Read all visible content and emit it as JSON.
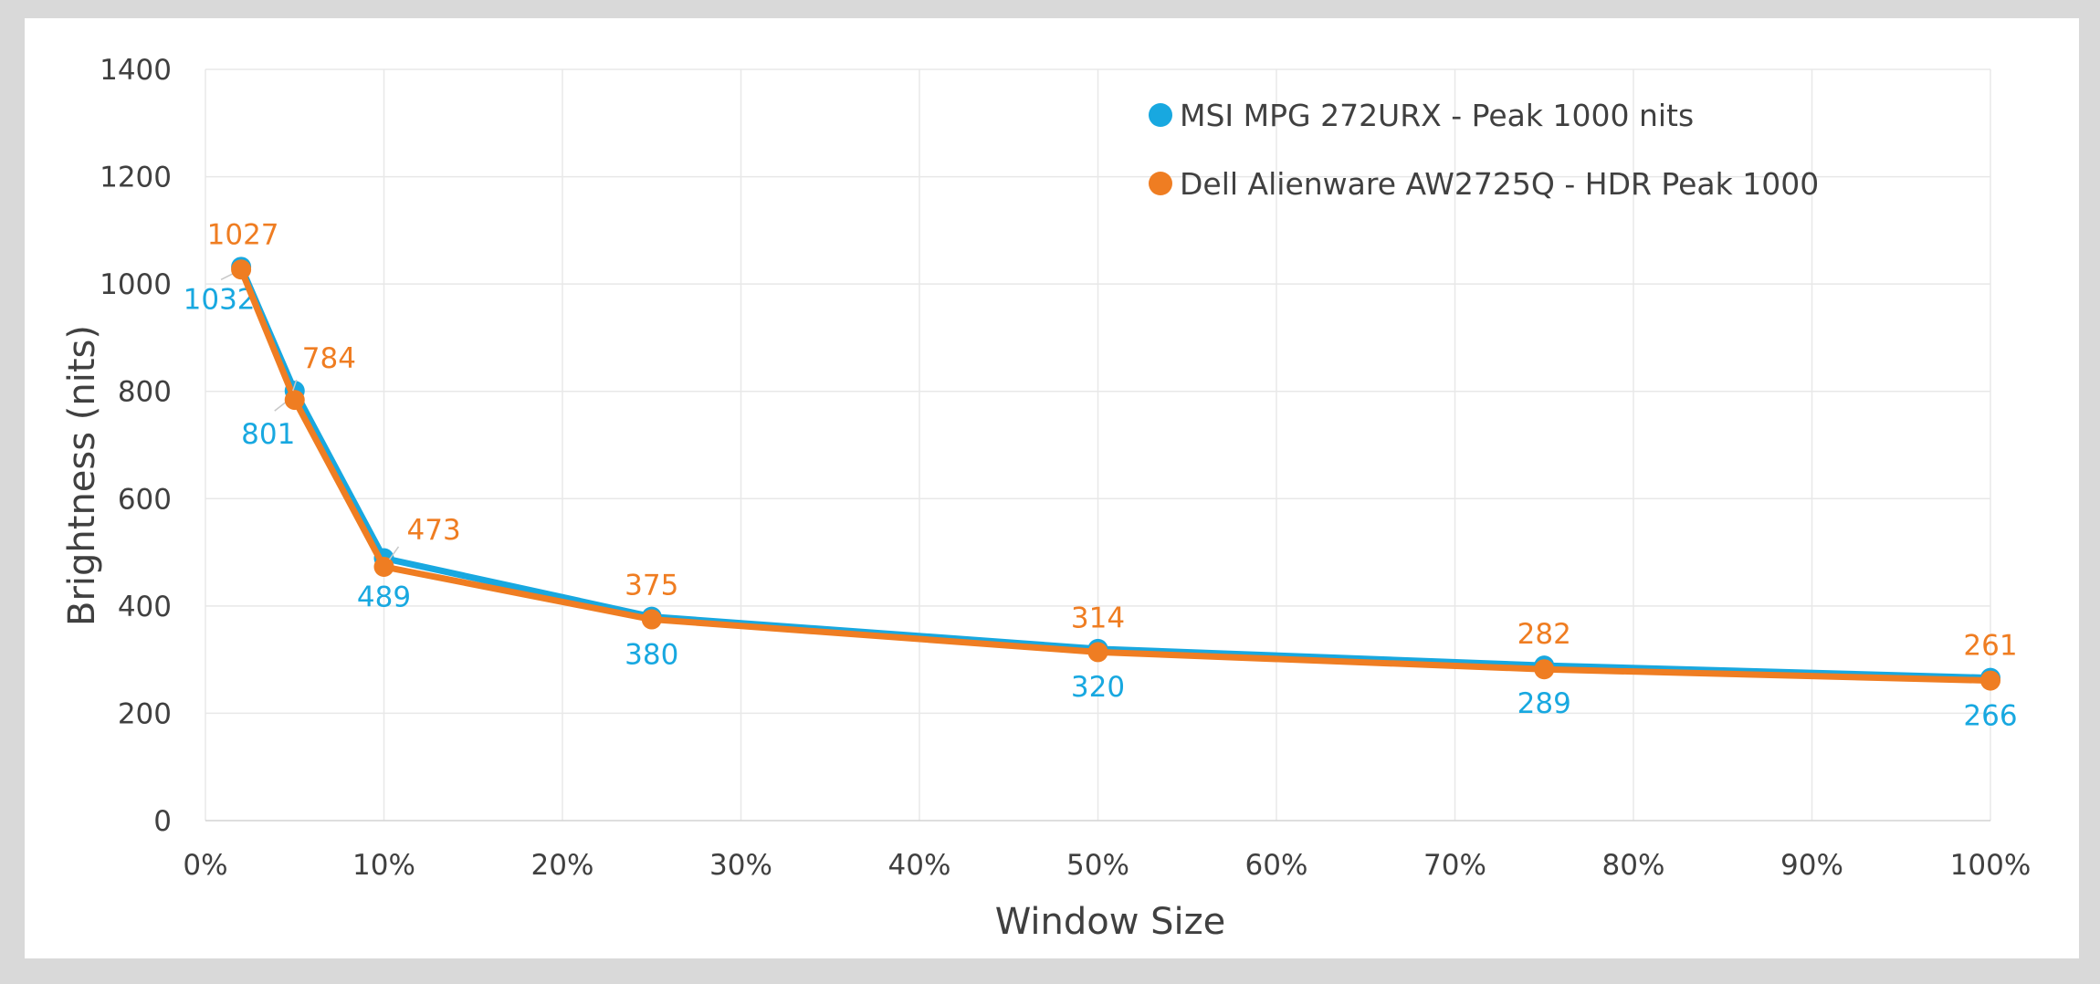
{
  "chart_data": {
    "type": "line",
    "xlabel": "Window Size",
    "ylabel": "Brightness (nits)",
    "xlim": [
      0,
      100
    ],
    "ylim": [
      0,
      1400
    ],
    "x_ticks": [
      "0%",
      "10%",
      "20%",
      "30%",
      "40%",
      "50%",
      "60%",
      "70%",
      "80%",
      "90%",
      "100%"
    ],
    "y_ticks": [
      "0",
      "200",
      "400",
      "600",
      "800",
      "1000",
      "1200",
      "1400"
    ],
    "x": [
      2,
      5,
      10,
      25,
      50,
      75,
      100
    ],
    "grid": true,
    "legend_position": "top-right",
    "series": [
      {
        "name": "MSI MPG 272URX - Peak 1000 nits",
        "color": "#18a8e0",
        "values": [
          1032,
          801,
          489,
          380,
          320,
          289,
          266
        ]
      },
      {
        "name": "Dell Alienware AW2725Q - HDR Peak 1000",
        "color": "#ef7d22",
        "values": [
          1027,
          784,
          473,
          375,
          314,
          282,
          261
        ]
      }
    ]
  }
}
